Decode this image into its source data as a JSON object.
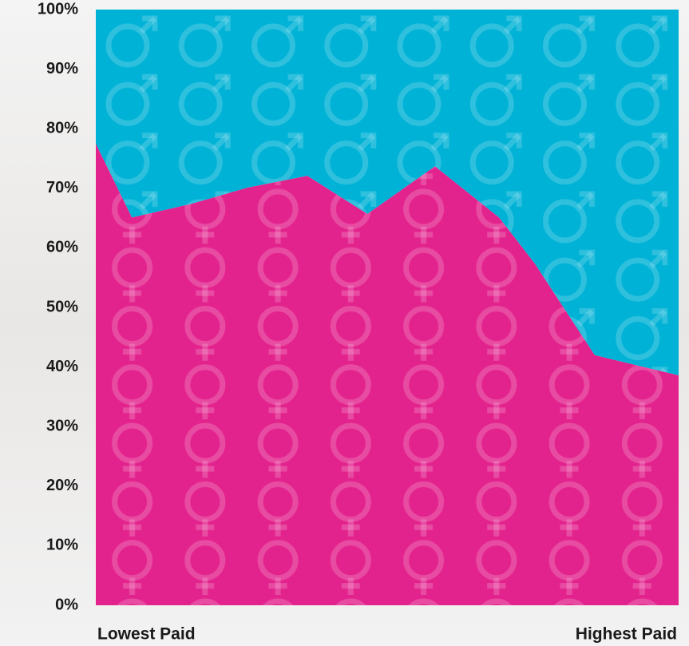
{
  "chart_data": {
    "type": "area",
    "stacked": true,
    "x": [
      0,
      6.2,
      16.4,
      26.0,
      36.3,
      46.6,
      58.2,
      69.2,
      75.3,
      85.6,
      93.2,
      100
    ],
    "xlim": [
      0,
      100
    ],
    "x_start_label": "Lowest Paid",
    "x_end_label": "Highest Paid",
    "series": [
      {
        "color": "#e3238d",
        "symbol": "female",
        "values": [
          77.5,
          65.1,
          67.4,
          70.1,
          72.1,
          65.7,
          73.7,
          65.1,
          57.4,
          42.0,
          40.2,
          38.6
        ]
      },
      {
        "color": "#00b2d6",
        "symbol": "male",
        "values": [
          22.5,
          34.9,
          32.6,
          29.9,
          27.9,
          34.3,
          26.3,
          34.9,
          42.6,
          58.0,
          59.8,
          61.4
        ]
      }
    ],
    "ylim": [
      0,
      100
    ],
    "yticks": [
      {
        "value": 0,
        "label": "0%"
      },
      {
        "value": 10,
        "label": "10%"
      },
      {
        "value": 20,
        "label": "20%"
      },
      {
        "value": 30,
        "label": "30%"
      },
      {
        "value": 40,
        "label": "40%"
      },
      {
        "value": 50,
        "label": "50%"
      },
      {
        "value": 60,
        "label": "60%"
      },
      {
        "value": 70,
        "label": "70%"
      },
      {
        "value": 80,
        "label": "80%"
      },
      {
        "value": 90,
        "label": "90%"
      },
      {
        "value": 100,
        "label": "100%"
      }
    ]
  }
}
